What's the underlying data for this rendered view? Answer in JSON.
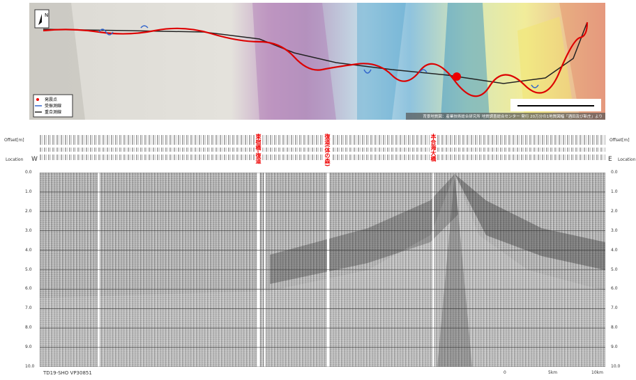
{
  "map": {
    "north": "N",
    "legend": [
      "発震点",
      "受振測線",
      "重合測線"
    ],
    "credit": "背景地質図：産業技術総合研究所 地質調査総合センター 発行 20万分の1地質図幅「酒田及び新庄」より"
  },
  "section": {
    "offset_label": "Offset[m]",
    "location_label": "Location",
    "west": "W",
    "east": "E",
    "places": [
      "東宿橋-復道",
      "復道(体の森)",
      "本合海大橋"
    ],
    "time_ticks": [
      {
        "value": 0,
        "label": "0.0"
      },
      {
        "value": 1,
        "label": "1.0"
      },
      {
        "value": 2,
        "label": "2.0"
      },
      {
        "value": 3,
        "label": "3.0"
      },
      {
        "value": 4,
        "label": "4.0"
      },
      {
        "value": 5,
        "label": "5.0"
      },
      {
        "value": 6,
        "label": "6.0"
      },
      {
        "value": 7,
        "label": "7.0"
      },
      {
        "value": 8,
        "label": "8.0"
      },
      {
        "value": 9,
        "label": "9.0"
      },
      {
        "value": 10,
        "label": "10.0"
      }
    ],
    "record_id": "TD19-SHO VP30851",
    "scale": [
      "0",
      "5km",
      "10km"
    ]
  }
}
